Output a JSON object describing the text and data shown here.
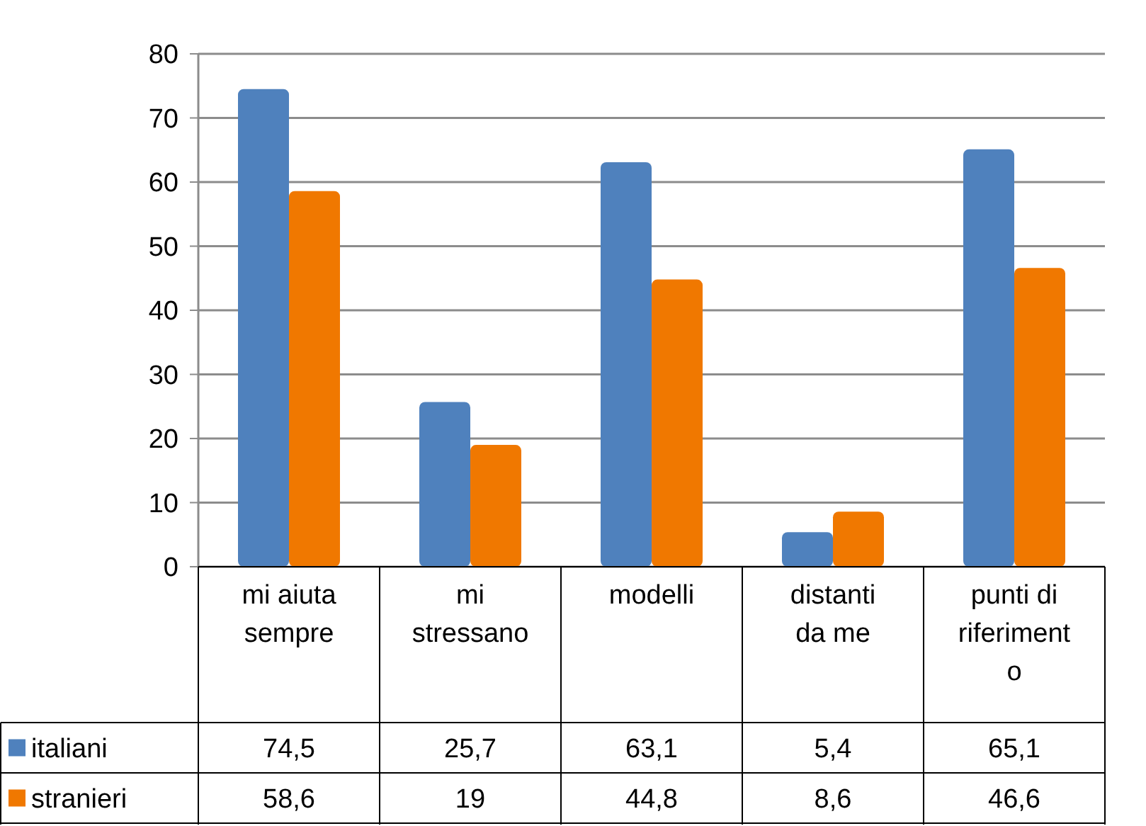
{
  "chart_data": {
    "type": "bar",
    "categories": [
      "mi aiuta sempre",
      "mi stressano",
      "modelli",
      "distanti da me",
      "punti di riferimento"
    ],
    "series": [
      {
        "name": "italiani",
        "color": "#4f81bd",
        "values": [
          74.5,
          25.7,
          63.1,
          5.4,
          65.1
        ],
        "value_labels": [
          "74,5",
          "25,7",
          "63,1",
          "5,4",
          "65,1"
        ]
      },
      {
        "name": "stranieri",
        "color": "#f07800",
        "values": [
          58.6,
          19,
          44.8,
          8.6,
          46.6
        ],
        "value_labels": [
          "58,6",
          "19",
          "44,8",
          "8,6",
          "46,6"
        ]
      }
    ],
    "ylim": [
      0,
      80
    ],
    "yticks": [
      0,
      10,
      20,
      30,
      40,
      50,
      60,
      70,
      80
    ],
    "grid": "y",
    "legend": "bottom"
  }
}
